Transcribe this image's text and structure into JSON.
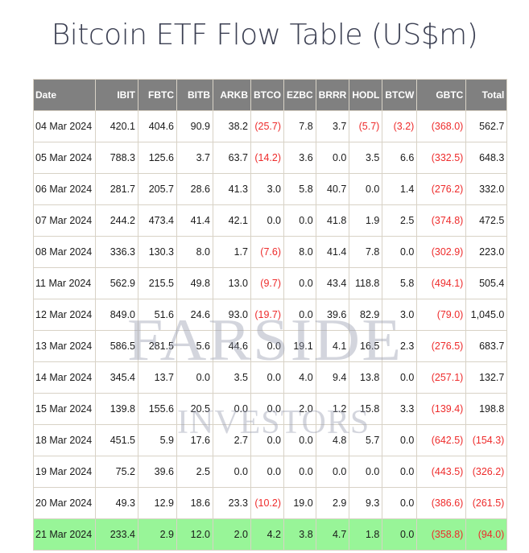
{
  "page": {
    "title": "Bitcoin ETF Flow Table (US$m)"
  },
  "watermark": {
    "line1": "FARSIDE",
    "line2": "INVESTORS"
  },
  "table": {
    "columns": [
      "Date",
      "IBIT",
      "FBTC",
      "BITB",
      "ARKB",
      "BTCO",
      "EZBC",
      "BRRR",
      "HODL",
      "BTCW",
      "GBTC",
      "Total"
    ],
    "rows": [
      [
        "04 Mar 2024",
        "420.1",
        "404.6",
        "90.9",
        "38.2",
        "(25.7)",
        "7.8",
        "3.7",
        "(5.7)",
        "(3.2)",
        "(368.0)",
        "562.7"
      ],
      [
        "05 Mar 2024",
        "788.3",
        "125.6",
        "3.7",
        "63.7",
        "(14.2)",
        "3.6",
        "0.0",
        "3.5",
        "6.6",
        "(332.5)",
        "648.3"
      ],
      [
        "06 Mar 2024",
        "281.7",
        "205.7",
        "28.6",
        "41.3",
        "3.0",
        "5.8",
        "40.7",
        "0.0",
        "1.4",
        "(276.2)",
        "332.0"
      ],
      [
        "07 Mar 2024",
        "244.2",
        "473.4",
        "41.4",
        "42.1",
        "0.0",
        "0.0",
        "41.8",
        "1.9",
        "2.5",
        "(374.8)",
        "472.5"
      ],
      [
        "08 Mar 2024",
        "336.3",
        "130.3",
        "8.0",
        "1.7",
        "(7.6)",
        "8.0",
        "41.4",
        "7.8",
        "0.0",
        "(302.9)",
        "223.0"
      ],
      [
        "11 Mar 2024",
        "562.9",
        "215.5",
        "49.8",
        "13.0",
        "(9.7)",
        "0.0",
        "43.4",
        "118.8",
        "5.8",
        "(494.1)",
        "505.4"
      ],
      [
        "12 Mar 2024",
        "849.0",
        "51.6",
        "24.6",
        "93.0",
        "(19.7)",
        "0.0",
        "39.6",
        "82.9",
        "3.0",
        "(79.0)",
        "1,045.0"
      ],
      [
        "13 Mar 2024",
        "586.5",
        "281.5",
        "5.6",
        "44.6",
        "0.0",
        "19.1",
        "4.1",
        "16.5",
        "2.3",
        "(276.5)",
        "683.7"
      ],
      [
        "14 Mar 2024",
        "345.4",
        "13.7",
        "0.0",
        "3.5",
        "0.0",
        "4.0",
        "9.4",
        "13.8",
        "0.0",
        "(257.1)",
        "132.7"
      ],
      [
        "15 Mar 2024",
        "139.8",
        "155.6",
        "20.5",
        "0.0",
        "0.0",
        "2.0",
        "1.2",
        "15.8",
        "3.3",
        "(139.4)",
        "198.8"
      ],
      [
        "18 Mar 2024",
        "451.5",
        "5.9",
        "17.6",
        "2.7",
        "0.0",
        "0.0",
        "4.8",
        "5.7",
        "0.0",
        "(642.5)",
        "(154.3)"
      ],
      [
        "19 Mar 2024",
        "75.2",
        "39.6",
        "2.5",
        "0.0",
        "0.0",
        "0.0",
        "0.0",
        "0.0",
        "0.0",
        "(443.5)",
        "(326.2)"
      ],
      [
        "20 Mar 2024",
        "49.3",
        "12.9",
        "18.6",
        "23.3",
        "(10.2)",
        "19.0",
        "2.9",
        "9.3",
        "0.0",
        "(386.6)",
        "(261.5)"
      ],
      [
        "21 Mar 2024",
        "233.4",
        "2.9",
        "12.0",
        "2.0",
        "4.2",
        "3.8",
        "4.7",
        "1.8",
        "0.0",
        "(358.8)",
        "(94.0)"
      ]
    ],
    "highlighted_row_index": 13
  },
  "colors": {
    "header_bg": "#808080",
    "header_text": "#ffffff",
    "negative_text": "#ee2b2b",
    "highlight_row_bg": "#98f598",
    "grid_border": "#d8d2c6",
    "title_text": "#3b3f52"
  }
}
